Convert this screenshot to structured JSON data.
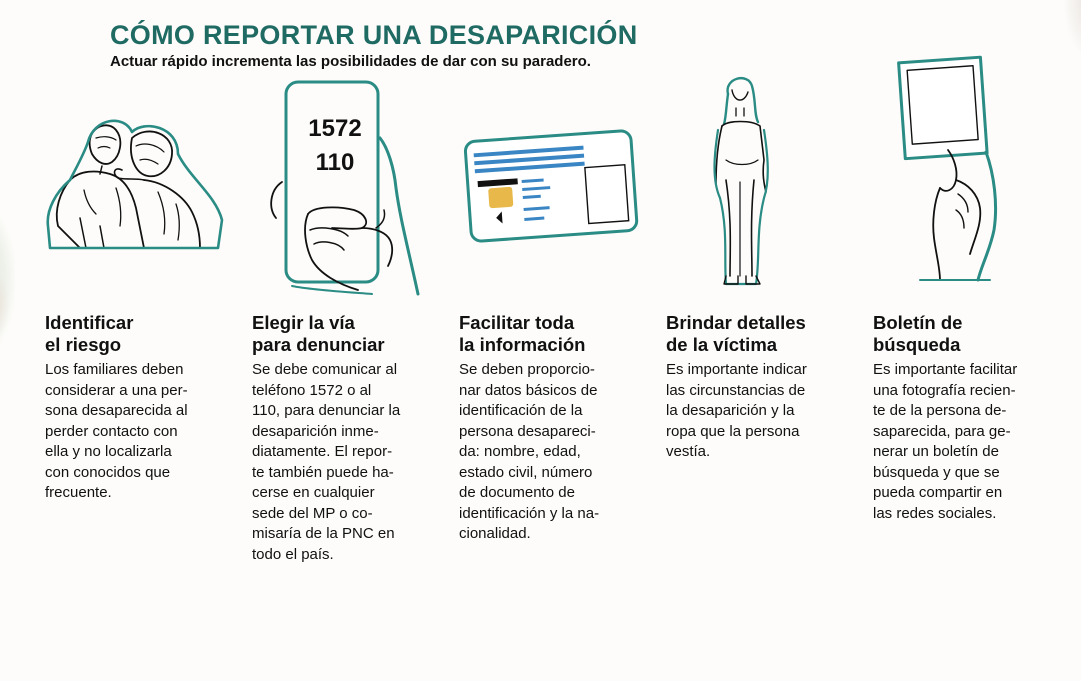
{
  "header": {
    "title": "CÓMO REPORTAR UNA DESAPARICIÓN",
    "subtitle": "Actuar rápido incrementa las posibilidades de dar con su paradero."
  },
  "colors": {
    "accent": "#2a8c84",
    "title": "#1f6b63",
    "card_stripe": "#3a86c4",
    "card_chip": "#e8b94a"
  },
  "phone": {
    "line1": "1572",
    "line2": "110"
  },
  "steps": [
    {
      "icon": "worried-couple-icon",
      "title_lines": [
        "Identificar",
        "el riesgo"
      ],
      "body_lines": [
        "Los familiares deben",
        "considerar a una per-",
        "sona desaparecida al",
        "perder contacto con",
        "ella y no localizarla",
        "con conocidos que",
        "frecuente."
      ]
    },
    {
      "icon": "phone-in-hand-icon",
      "title_lines": [
        "Elegir la vía",
        "para denunciar"
      ],
      "body_lines": [
        "Se debe comunicar al",
        "teléfono 1572 o al",
        "110, para denunciar la",
        "desaparición inme-",
        "diatamente. El repor-",
        "te también puede ha-",
        "cerse en cualquier",
        "sede del MP o co-",
        "misaría de la PNC en",
        "todo el país."
      ]
    },
    {
      "icon": "id-card-icon",
      "title_lines": [
        "Facilitar toda",
        "la información"
      ],
      "body_lines": [
        "Se deben proporcio-",
        "nar datos básicos de",
        "identificación de la",
        "persona desapareci-",
        "da: nombre, edad,",
        "estado civil, número",
        "de documento de",
        "identificación y la na-",
        "cionalidad."
      ]
    },
    {
      "icon": "standing-woman-icon",
      "title_lines": [
        "Brindar detalles",
        "de la víctima"
      ],
      "body_lines": [
        "Es importante indicar",
        "las circunstancias de",
        "la desaparición y la",
        "ropa que la persona",
        "vestía."
      ]
    },
    {
      "icon": "photo-in-hand-icon",
      "title_lines": [
        "Boletín de",
        "búsqueda"
      ],
      "body_lines": [
        "Es importante facilitar",
        "una fotografía recien-",
        "te de la persona de-",
        "saparecida, para ge-",
        "nerar un boletín de",
        "búsqueda y que se",
        "pueda compartir en",
        "las redes sociales."
      ]
    }
  ]
}
